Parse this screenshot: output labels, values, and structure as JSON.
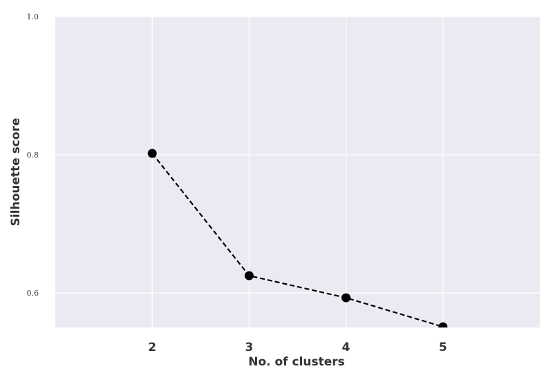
{
  "chart_data": {
    "type": "line",
    "title": "",
    "xlabel": "No. of clusters",
    "ylabel": "Silhouette score",
    "x": [
      2,
      3,
      4,
      5
    ],
    "xticks": [
      "2",
      "3",
      "4",
      "5"
    ],
    "xlim": [
      1,
      6
    ],
    "yticks": [
      "0.6",
      "0.8",
      "1.0"
    ],
    "ytick_values": [
      0.6,
      0.8,
      1.0
    ],
    "ylim": [
      0.55,
      1.0
    ],
    "series": [
      {
        "values": [
          0.802,
          0.625,
          0.593,
          0.551
        ],
        "line_style": "dashed",
        "marker": "circle"
      }
    ],
    "grid": true,
    "colors": {
      "plot_background": "#eaeaf2",
      "grid": "#ffffff",
      "line": "#000000",
      "marker": "#000000"
    }
  }
}
